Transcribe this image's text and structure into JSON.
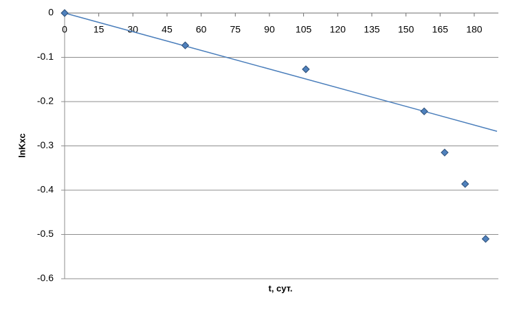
{
  "chart_data": {
    "type": "scatter",
    "x_label": "t, сут.",
    "y_label": "lnKxc",
    "x": [
      0,
      53,
      106,
      158,
      167,
      176,
      185
    ],
    "values": [
      0,
      -0.073,
      -0.127,
      -0.222,
      -0.315,
      -0.386,
      -0.51
    ],
    "color": "#4f81bd",
    "trendline": {
      "x": [
        0,
        190
      ],
      "values": [
        0,
        -0.267
      ],
      "color": "#4a7ebb"
    },
    "xlim": [
      0,
      190
    ],
    "xticks": [
      0,
      15,
      30,
      45,
      60,
      75,
      90,
      105,
      120,
      135,
      150,
      165,
      180
    ],
    "ylim": [
      -0.6,
      0
    ],
    "yticks": [
      0,
      -0.1,
      -0.2,
      -0.3,
      -0.4,
      -0.5,
      -0.6
    ],
    "grid": true
  }
}
